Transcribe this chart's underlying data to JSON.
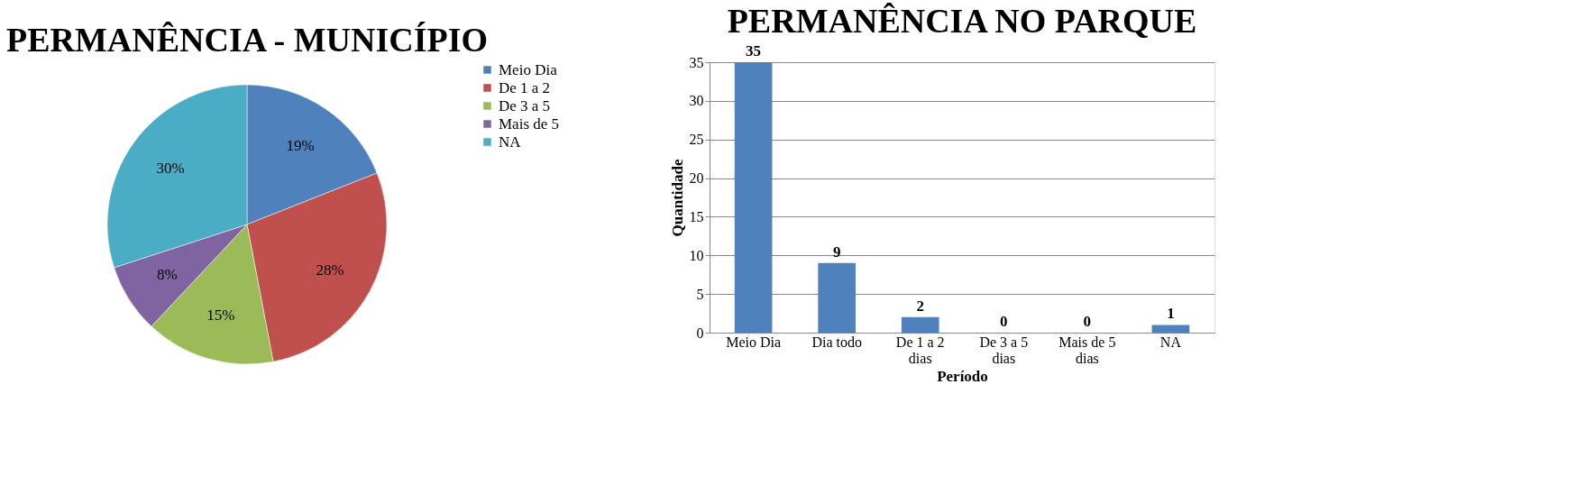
{
  "chart_data": [
    {
      "type": "pie",
      "title": "PERMANÊNCIA - MUNICÍPIO",
      "categories": [
        "Meio Dia",
        "De 1 a 2",
        "De 3 a 5",
        "Mais de 5",
        "NA"
      ],
      "values": [
        19,
        28,
        15,
        8,
        30
      ],
      "colors": [
        "#4f81bd",
        "#c0504d",
        "#9bbb59",
        "#8064a2",
        "#4bacc6"
      ],
      "value_labels": [
        "19%",
        "28%",
        "15%",
        "8%",
        "30%"
      ],
      "legend": "right"
    },
    {
      "type": "bar",
      "title": "PERMANÊNCIA NO PARQUE",
      "xlabel": "Período",
      "ylabel": "Quantidade",
      "categories": [
        "Meio Dia",
        "Dia todo",
        "De 1 a 2 dias",
        "De 3 a 5 dias",
        "Mais de 5 dias",
        "NA"
      ],
      "values": [
        35,
        9,
        2,
        0,
        0,
        1
      ],
      "color": "#4f81bd",
      "ylim": [
        0,
        35
      ],
      "yticks": [
        0,
        5,
        10,
        15,
        20,
        25,
        30,
        35
      ],
      "grid": "y",
      "data_labels": true
    }
  ]
}
